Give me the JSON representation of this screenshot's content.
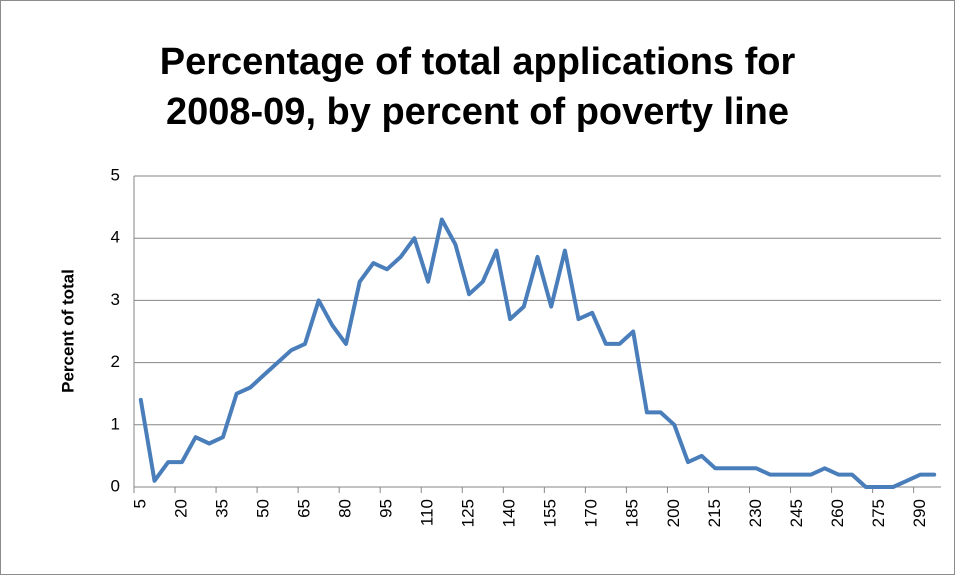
{
  "chart_data": {
    "type": "line",
    "title": "Percentage of total applications for 2008-09, by percent of poverty line",
    "y_label": "Percent of total",
    "categories": [
      5,
      null,
      null,
      20,
      null,
      null,
      35,
      null,
      null,
      50,
      null,
      null,
      65,
      null,
      null,
      80,
      null,
      null,
      95,
      null,
      null,
      110,
      null,
      null,
      125,
      null,
      null,
      140,
      null,
      null,
      155,
      null,
      null,
      170,
      null,
      null,
      185,
      null,
      null,
      200,
      null,
      null,
      215,
      null,
      null,
      230,
      null,
      null,
      245,
      null,
      null,
      260,
      null,
      null,
      275,
      null,
      null,
      290,
      null
    ],
    "series": [
      {
        "name": "Percent of total",
        "color": "#4a7ebb",
        "values": [
          1.4,
          0.1,
          0.4,
          0.4,
          0.8,
          0.7,
          0.8,
          1.5,
          1.6,
          1.8,
          2.0,
          2.2,
          2.3,
          3.0,
          2.6,
          2.3,
          3.3,
          3.6,
          3.5,
          3.7,
          4.0,
          3.3,
          4.3,
          3.9,
          3.1,
          3.3,
          3.8,
          2.7,
          2.9,
          3.7,
          2.9,
          3.8,
          2.7,
          2.8,
          2.3,
          2.3,
          2.5,
          1.2,
          1.2,
          1.0,
          0.4,
          0.5,
          0.3,
          0.3,
          0.3,
          0.3,
          0.2,
          0.2,
          0.2,
          0.2,
          0.3,
          0.2,
          0.2,
          0.0,
          0.0,
          0.0,
          0.1,
          0.2,
          0.2
        ]
      }
    ],
    "ylim": [
      0,
      5
    ],
    "yticks": [
      0,
      1,
      2,
      3,
      4,
      5
    ],
    "grid": true
  }
}
